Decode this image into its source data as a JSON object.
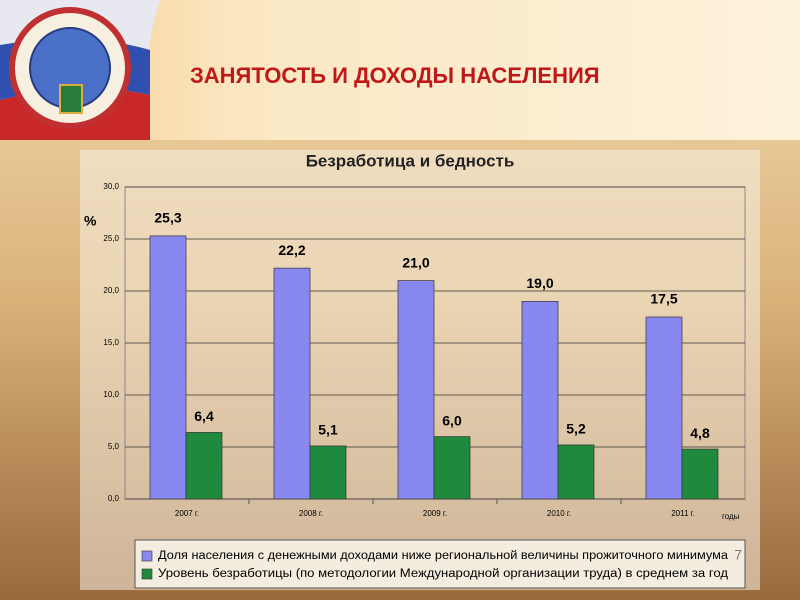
{
  "header": {
    "title": "ЗАНЯТОСТЬ И ДОХОДЫ НАСЕЛЕНИЯ",
    "slide_number": "7"
  },
  "chart_data": {
    "type": "bar",
    "title": "Безработица и бедность",
    "y_label": "%",
    "x_label": "годы",
    "categories": [
      "2007 г.",
      "2008 г.",
      "2009 г.",
      "2010 г.",
      "2011 г."
    ],
    "series": [
      {
        "name": "Доля населения с денежными доходами ниже региональной величины прожиточного минимума",
        "color": "#8888f0",
        "values": [
          25.3,
          22.2,
          21.0,
          19.0,
          17.5
        ],
        "value_labels": [
          "25,3",
          "22,2",
          "21,0",
          "19,0",
          "17,5"
        ]
      },
      {
        "name": "Уровень безработицы (по методологии Международной организации труда) в среднем за год",
        "color": "#1f8a3e",
        "values": [
          6.4,
          5.1,
          6.0,
          5.2,
          4.8
        ],
        "value_labels": [
          "6,4",
          "5,1",
          "6,0",
          "5,2",
          "4,8"
        ]
      }
    ],
    "ylim": [
      0,
      30
    ],
    "yticks": [
      {
        "value": 0,
        "label": "0,0"
      },
      {
        "value": 5,
        "label": "5,0"
      },
      {
        "value": 10,
        "label": "10,0"
      },
      {
        "value": 15,
        "label": "15,0"
      },
      {
        "value": 20,
        "label": "20,0"
      },
      {
        "value": 25,
        "label": "25,0"
      },
      {
        "value": 30,
        "label": "30,0"
      }
    ],
    "grid": true
  }
}
